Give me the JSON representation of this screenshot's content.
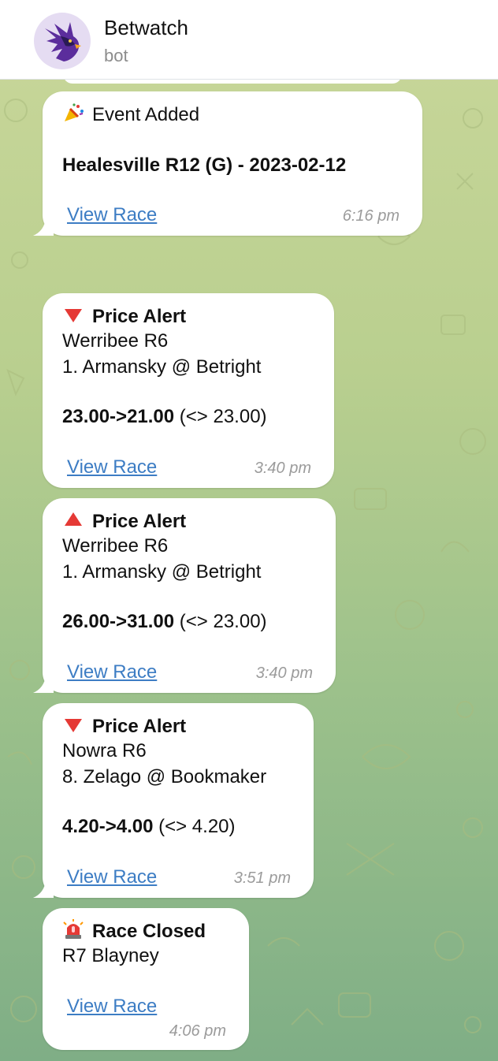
{
  "chat": {
    "name": "Betwatch",
    "subtitle": "bot"
  },
  "messages": [
    {
      "type": "event",
      "icon": "party-popper-icon",
      "title": "Event Added",
      "headline": "Healesville R12 (G) - 2023-02-12",
      "link": "View Race",
      "time": "6:16 pm"
    },
    {
      "type": "price-alert",
      "icon": "red-down-triangle-icon",
      "title": "Price Alert",
      "race": "Werribee R6",
      "runner": "1. Armansky @ Betright",
      "price_change": "23.00->21.00",
      "reference": "(<> 23.00)",
      "link": "View Race",
      "time": "3:40 pm"
    },
    {
      "type": "price-alert",
      "icon": "red-up-triangle-icon",
      "title": "Price Alert",
      "race": "Werribee R6",
      "runner": "1. Armansky @ Betright",
      "price_change": "26.00->31.00",
      "reference": "(<> 23.00)",
      "link": "View Race",
      "time": "3:40 pm"
    },
    {
      "type": "price-alert",
      "icon": "red-down-triangle-icon",
      "title": "Price Alert",
      "race": "Nowra R6",
      "runner": "8. Zelago @ Bookmaker",
      "price_change": "4.20->4.00",
      "reference": "(<> 4.20)",
      "link": "View Race",
      "time": "3:51 pm"
    },
    {
      "type": "race-closed",
      "icon": "police-siren-icon",
      "title": "Race Closed",
      "race": "R7 Blayney",
      "link": "View Race",
      "time": "4:06 pm"
    }
  ]
}
